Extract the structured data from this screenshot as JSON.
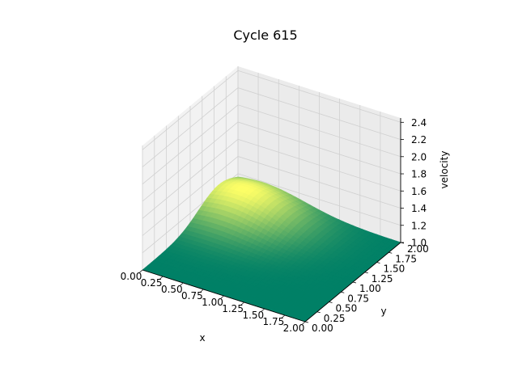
{
  "chart_data": {
    "type": "surface",
    "title": "Cycle 615",
    "xlabel": "x",
    "ylabel": "y",
    "zlabel": "velocity",
    "xlim": [
      0,
      2
    ],
    "ylim": [
      0,
      2
    ],
    "zlim": [
      1.0,
      2.45
    ],
    "xticks": [
      "0.00",
      "0.25",
      "0.50",
      "0.75",
      "1.00",
      "1.25",
      "1.50",
      "1.75",
      "2.00"
    ],
    "yticks": [
      "0.00",
      "0.25",
      "0.50",
      "0.75",
      "1.00",
      "1.25",
      "1.50",
      "1.75",
      "2.00"
    ],
    "zticks": [
      "1.0",
      "1.2",
      "1.4",
      "1.6",
      "1.8",
      "2.0",
      "2.2",
      "2.4"
    ],
    "colormap": "summer",
    "colors": {
      "low": "#008066",
      "high": "#ffff66"
    },
    "surface": {
      "base_value": 1.0,
      "peak": {
        "x": 0.3,
        "y": 1.6,
        "value": 1.3
      },
      "grid_on": true
    }
  }
}
